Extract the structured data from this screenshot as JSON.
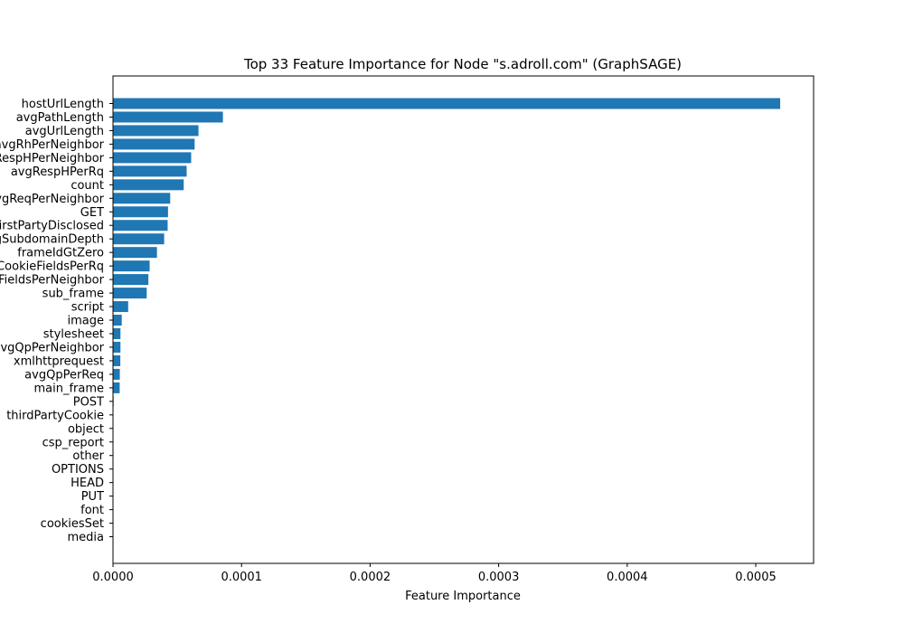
{
  "chart_data": {
    "type": "bar",
    "orientation": "horizontal",
    "title": "Top 33 Feature Importance for Node \"s.adroll.com\" (GraphSAGE)",
    "xlabel": "Feature Importance",
    "ylabel": "",
    "xlim": [
      0,
      0.000545
    ],
    "xticks": [
      0.0,
      0.0001,
      0.0002,
      0.0003,
      0.0004,
      0.0005
    ],
    "xtick_labels": [
      "0.0000",
      "0.0001",
      "0.0002",
      "0.0003",
      "0.0004",
      "0.0005"
    ],
    "grid": false,
    "bar_color": "#1f77b4",
    "categories": [
      "hostUrlLength",
      "avgPathLength",
      "avgUrlLength",
      "avgRhPerNeighbor",
      "avgRespHPerNeighbor",
      "avgRespHPerRq",
      "count",
      "avgReqPerNeighbor",
      "GET",
      "firstPartyDisclosed",
      "avgSubdomainDepth",
      "frameIdGtZero",
      "avgCookieFieldsPerRq",
      "avgCookieFieldsPerNeighbor",
      "sub_frame",
      "script",
      "image",
      "stylesheet",
      "avgQpPerNeighbor",
      "xmlhttprequest",
      "avgQpPerReq",
      "main_frame",
      "POST",
      "thirdPartyCookie",
      "object",
      "csp_report",
      "other",
      "OPTIONS",
      "HEAD",
      "PUT",
      "font",
      "cookiesSet",
      "media"
    ],
    "values": [
      0.000519,
      8.55e-05,
      6.65e-05,
      6.35e-05,
      6.08e-05,
      5.73e-05,
      5.5e-05,
      4.45e-05,
      4.28e-05,
      4.25e-05,
      3.98e-05,
      3.42e-05,
      2.85e-05,
      2.75e-05,
      2.62e-05,
      1.18e-05,
      6.8e-06,
      5.8e-06,
      5.8e-06,
      5.7e-06,
      5.3e-06,
      5.2e-06,
      5e-07,
      3e-07,
      2e-07,
      1e-07,
      1e-07,
      1e-07,
      1e-07,
      1e-07,
      1e-07,
      1e-07,
      1e-07
    ]
  }
}
